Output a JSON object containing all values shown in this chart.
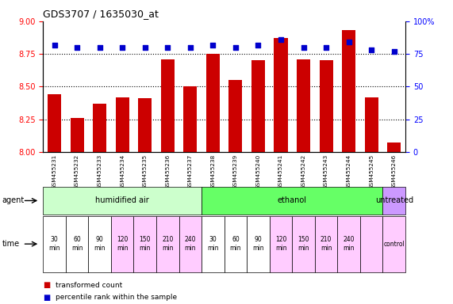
{
  "title": "GDS3707 / 1635030_at",
  "samples": [
    "GSM455231",
    "GSM455232",
    "GSM455233",
    "GSM455234",
    "GSM455235",
    "GSM455236",
    "GSM455237",
    "GSM455238",
    "GSM455239",
    "GSM455240",
    "GSM455241",
    "GSM455242",
    "GSM455243",
    "GSM455244",
    "GSM455245",
    "GSM455246"
  ],
  "bar_values": [
    8.44,
    8.26,
    8.37,
    8.42,
    8.41,
    8.71,
    8.5,
    8.75,
    8.55,
    8.7,
    8.87,
    8.71,
    8.7,
    8.93,
    8.42,
    8.07
  ],
  "dot_values": [
    82,
    80,
    80,
    80,
    80,
    80,
    80,
    82,
    80,
    82,
    86,
    80,
    80,
    84,
    78,
    77
  ],
  "bar_color": "#cc0000",
  "dot_color": "#0000cc",
  "ylim_left": [
    8.0,
    9.0
  ],
  "ylim_right": [
    0,
    100
  ],
  "yticks_left": [
    8.0,
    8.25,
    8.5,
    8.75,
    9.0
  ],
  "yticks_right": [
    0,
    25,
    50,
    75,
    100
  ],
  "agent_groups": [
    {
      "label": "humidified air",
      "start": 0,
      "end": 7,
      "color": "#ccffcc"
    },
    {
      "label": "ethanol",
      "start": 7,
      "end": 15,
      "color": "#66ff66"
    },
    {
      "label": "untreated",
      "start": 15,
      "end": 16,
      "color": "#cc99ff"
    }
  ],
  "time_label_data": [
    {
      "label": "30\nmin",
      "idx": 0,
      "color": "#ffffff"
    },
    {
      "label": "60\nmin",
      "idx": 1,
      "color": "#ffffff"
    },
    {
      "label": "90\nmin",
      "idx": 2,
      "color": "#ffffff"
    },
    {
      "label": "120\nmin",
      "idx": 3,
      "color": "#ffccff"
    },
    {
      "label": "150\nmin",
      "idx": 4,
      "color": "#ffccff"
    },
    {
      "label": "210\nmin",
      "idx": 5,
      "color": "#ffccff"
    },
    {
      "label": "240\nmin",
      "idx": 6,
      "color": "#ffccff"
    },
    {
      "label": "30\nmin",
      "idx": 7,
      "color": "#ffffff"
    },
    {
      "label": "60\nmin",
      "idx": 8,
      "color": "#ffffff"
    },
    {
      "label": "90\nmin",
      "idx": 9,
      "color": "#ffffff"
    },
    {
      "label": "120\nmin",
      "idx": 10,
      "color": "#ffccff"
    },
    {
      "label": "150\nmin",
      "idx": 11,
      "color": "#ffccff"
    },
    {
      "label": "210\nmin",
      "idx": 12,
      "color": "#ffccff"
    },
    {
      "label": "240\nmin",
      "idx": 13,
      "color": "#ffccff"
    },
    {
      "label": "",
      "idx": 14,
      "color": "#ffccff"
    },
    {
      "label": "control",
      "idx": 15,
      "color": "#ffccff"
    }
  ],
  "legend_items": [
    {
      "label": "transformed count",
      "color": "#cc0000"
    },
    {
      "label": "percentile rank within the sample",
      "color": "#0000cc"
    }
  ],
  "bar_width": 0.6,
  "background_color": "#ffffff",
  "grid_lines": [
    8.25,
    8.5,
    8.75
  ]
}
